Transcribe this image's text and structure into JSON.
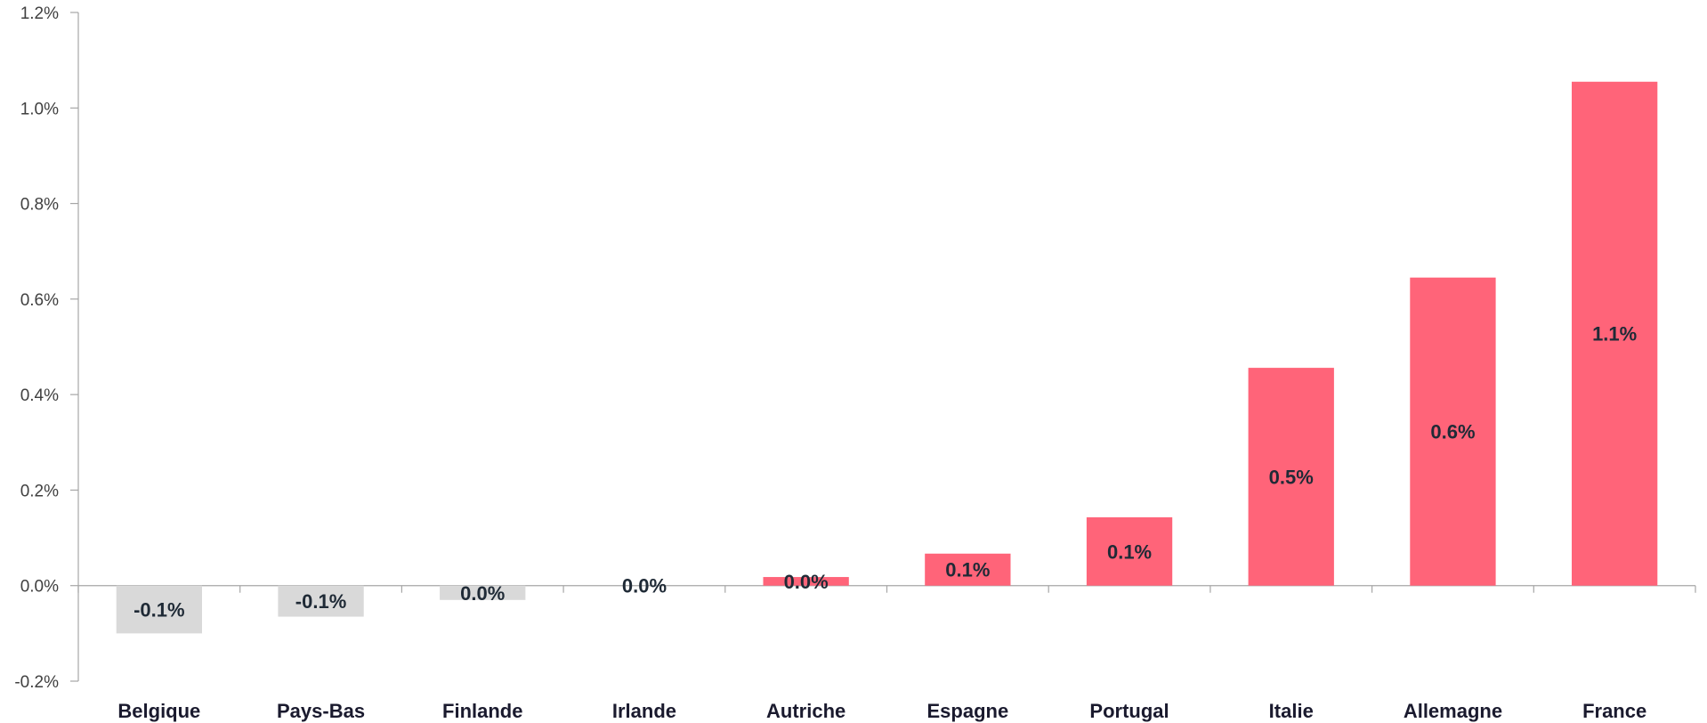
{
  "chart_data": {
    "type": "bar",
    "categories": [
      "Belgique",
      "Pays-Bas",
      "Finlande",
      "Irlande",
      "Autriche",
      "Espagne",
      "Portugal",
      "Italie",
      "Allemagne",
      "France"
    ],
    "values": [
      -0.1,
      -0.065,
      -0.03,
      0.0,
      0.018,
      0.067,
      0.143,
      0.456,
      0.645,
      1.055
    ],
    "data_labels": [
      "-0.1%",
      "-0.1%",
      "0.0%",
      "0.0%",
      "0.0%",
      "0.1%",
      "0.1%",
      "0.5%",
      "0.6%",
      "1.1%"
    ],
    "ylim": [
      -0.2,
      1.2
    ],
    "y_ticks": [
      -0.2,
      0.0,
      0.2,
      0.4,
      0.6,
      0.8,
      1.0,
      1.2
    ],
    "y_tick_labels": [
      "-0.2%",
      "0.0%",
      "0.2%",
      "0.4%",
      "0.6%",
      "0.8%",
      "1.0%",
      "1.2%"
    ],
    "colors": {
      "negative": "#d9d9d9",
      "positive": "#ff6479"
    },
    "grid": false,
    "legend": "none",
    "title": "",
    "xlabel": "",
    "ylabel": ""
  }
}
